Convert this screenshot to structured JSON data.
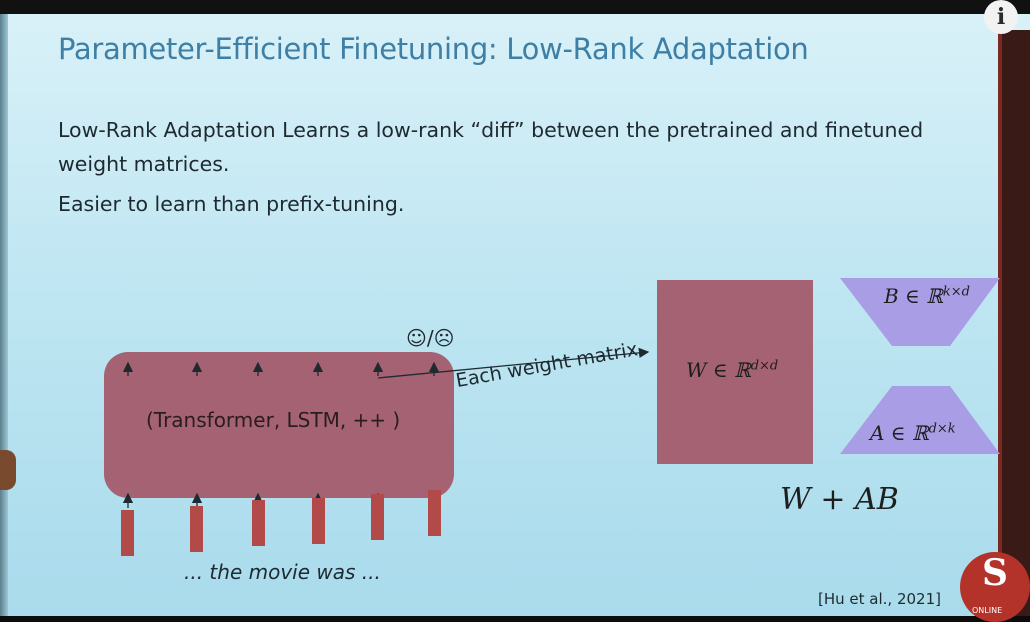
{
  "slide": {
    "title": "Parameter-Efficient Finetuning: Low-Rank Adaptation",
    "line1": "Low-Rank Adaptation Learns a low-rank “diff” between the pretrained and finetuned",
    "line2": "weight matrices.",
    "line3": "Easier to learn than prefix-tuning.",
    "model_label": "(Transformer, LSTM, ++ )",
    "emoji": "☺/☹",
    "weight_label": "Each weight matrix",
    "W_label": "W ∈ ℝ",
    "W_sup": "d×d",
    "B_label": "B ∈ ℝ",
    "B_sup": "k×d",
    "A_label": "A ∈ ℝ",
    "A_sup": "d×k",
    "product_label": "W + AB",
    "input_text": "... the movie was ...",
    "citation": "[Hu et al., 2021]"
  },
  "overlay": {
    "info_icon": "i",
    "logo_letter": "S",
    "logo_text": "ONLINE"
  },
  "colors": {
    "accent_title": "#3e7fa6",
    "block_fill": "#a46272",
    "trapezoid_fill": "#a99ee6",
    "token_fill": "#b24a4a"
  }
}
